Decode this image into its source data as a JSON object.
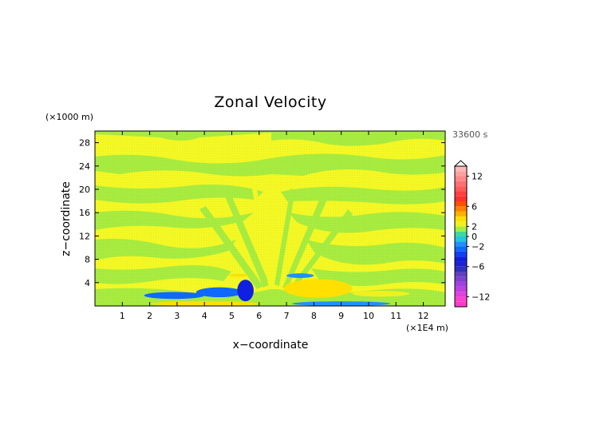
{
  "chart_data": {
    "type": "heatmap",
    "title": "Zonal Velocity",
    "xlabel": "x−coordinate",
    "ylabel": "z−coordinate",
    "x_unit": "(×1E4 m)",
    "y_unit": "(×1000 m)",
    "time_label": "33600 s",
    "xlim": [
      0,
      12.8
    ],
    "ylim": [
      0,
      30
    ],
    "x_ticks": [
      1,
      2,
      3,
      4,
      5,
      6,
      7,
      8,
      9,
      10,
      11,
      12
    ],
    "y_ticks": [
      4,
      8,
      12,
      16,
      20,
      24,
      28
    ],
    "colorbar": {
      "levels": [
        -14,
        -13,
        -12,
        -11,
        -10,
        -9,
        -8,
        -7,
        -6,
        -5,
        -4,
        -3,
        -2,
        -1,
        0,
        1,
        2,
        3,
        4,
        5,
        6,
        7,
        8,
        9,
        10,
        11,
        12,
        13,
        14
      ],
      "colors": [
        "#ff3cc8",
        "#ff40d0",
        "#e040e0",
        "#c040e0",
        "#a040e0",
        "#8040d0",
        "#6040c0",
        "#3030c0",
        "#2020d0",
        "#1020e0",
        "#1040f0",
        "#1068ff",
        "#2090ff",
        "#20c8e0",
        "#40d8a0",
        "#a0f040",
        "#f0f020",
        "#ffe000",
        "#ffb000",
        "#ff8000",
        "#ff5000",
        "#ff3030",
        "#ff4040",
        "#ff5a5a",
        "#ff7070",
        "#ff8888",
        "#ffa0a0",
        "#ffb8b8"
      ],
      "tick_labels": [
        {
          "value": 12,
          "label": "12"
        },
        {
          "value": 6,
          "label": "6"
        },
        {
          "value": 2,
          "label": "2"
        },
        {
          "value": 0,
          "label": "0"
        },
        {
          "value": -2,
          "label": "−2"
        },
        {
          "value": -6,
          "label": "−6"
        },
        {
          "value": -12,
          "label": "−12"
        }
      ]
    },
    "field_features": [
      {
        "kind": "negative",
        "x": [
          1.8,
          4.0
        ],
        "z": [
          1.2,
          2.4
        ],
        "value": -2.5
      },
      {
        "kind": "negative",
        "x": [
          3.7,
          5.4
        ],
        "z": [
          1.5,
          3.2
        ],
        "value": -3
      },
      {
        "kind": "negative",
        "x": [
          5.2,
          5.8
        ],
        "z": [
          0.8,
          4.5
        ],
        "value": -5
      },
      {
        "kind": "negative",
        "x": [
          7.2,
          10.8
        ],
        "z": [
          0.0,
          0.8
        ],
        "value": -2
      },
      {
        "kind": "negative",
        "x": [
          7.0,
          8.0
        ],
        "z": [
          4.8,
          5.6
        ],
        "value": -1.5
      },
      {
        "kind": "positive",
        "x": [
          2.0,
          6.0
        ],
        "z": [
          0.0,
          0.8
        ],
        "value": 3
      },
      {
        "kind": "positive",
        "x": [
          4.9,
          5.6
        ],
        "z": [
          5.0,
          5.5
        ],
        "value": 3
      },
      {
        "kind": "positive",
        "x": [
          6.9,
          9.4
        ],
        "z": [
          1.4,
          4.6
        ],
        "value": 3.5
      },
      {
        "kind": "positive",
        "x": [
          9.4,
          11.5
        ],
        "z": [
          1.6,
          2.6
        ],
        "value": 2.5
      }
    ]
  }
}
